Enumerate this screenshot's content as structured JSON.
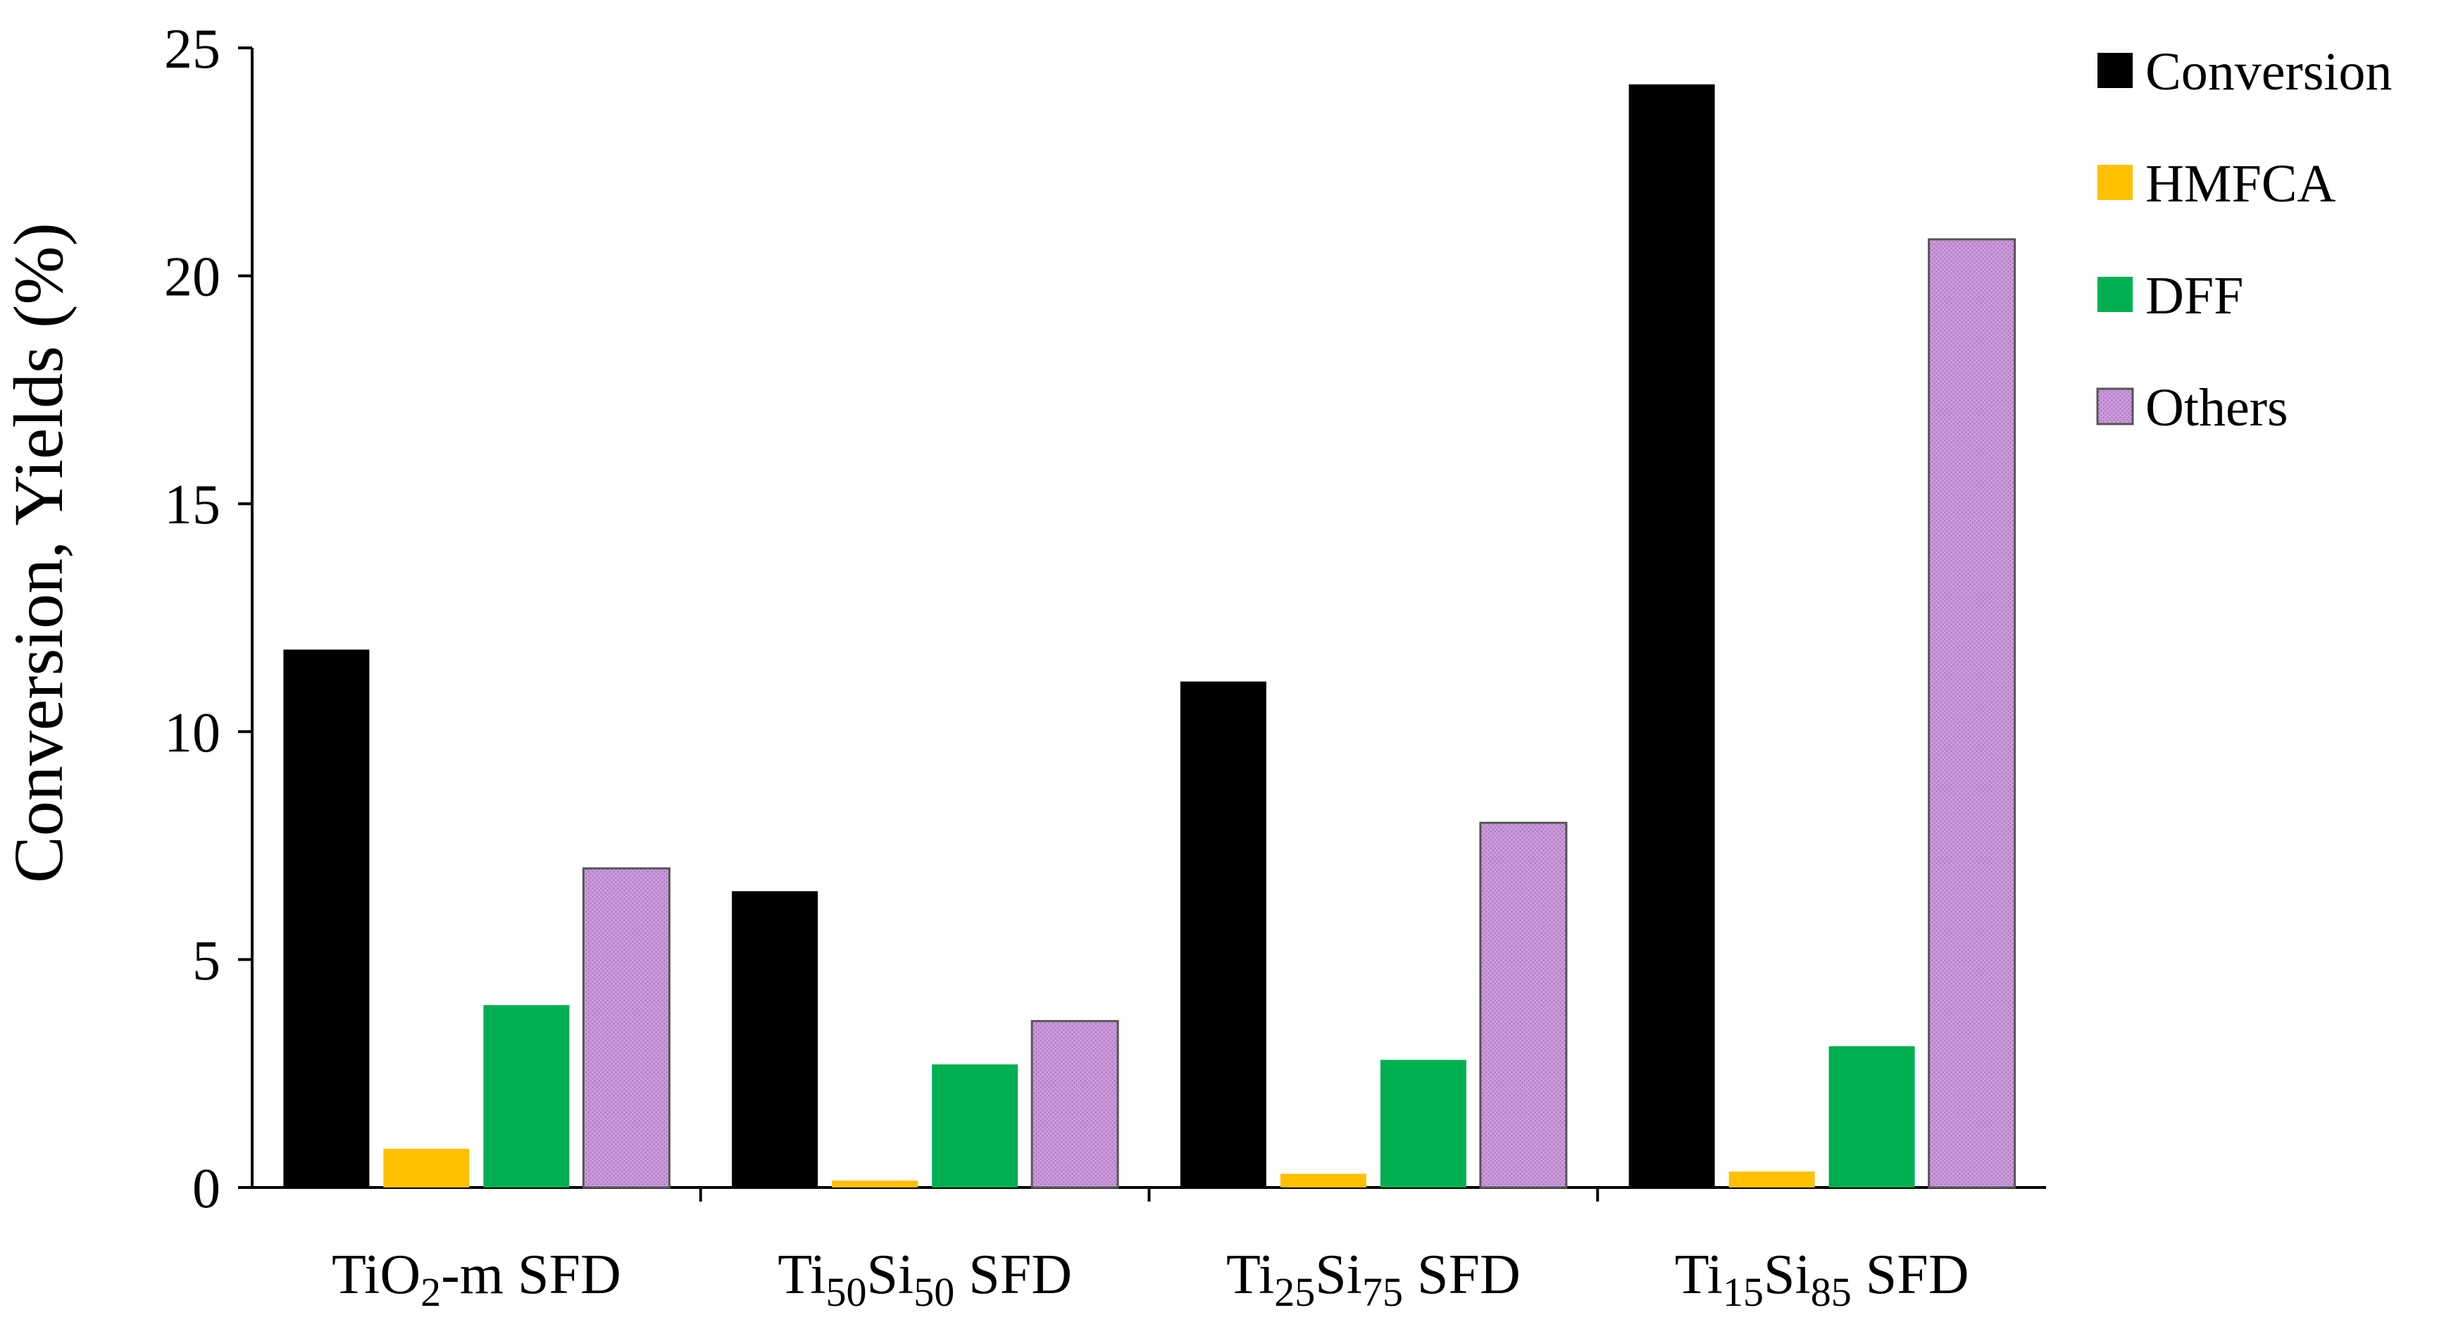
{
  "chart_data": {
    "type": "bar",
    "title": "",
    "xlabel": "",
    "ylabel": "Conversion, Yields (%)",
    "ylim": [
      0,
      25
    ],
    "yticks": [
      "0",
      "5",
      "10",
      "15",
      "20",
      "25"
    ],
    "grid": false,
    "legend_position": "top-right",
    "categories": [
      {
        "id": "tio2m",
        "parts": [
          {
            "t": "TiO",
            "s": "normal"
          },
          {
            "t": "2",
            "s": "sub"
          },
          {
            "t": "-m SFD",
            "s": "normal"
          }
        ]
      },
      {
        "id": "ti50si50",
        "parts": [
          {
            "t": "Ti",
            "s": "normal"
          },
          {
            "t": "50",
            "s": "sub"
          },
          {
            "t": "Si",
            "s": "normal"
          },
          {
            "t": "50",
            "s": "sub"
          },
          {
            "t": " SFD",
            "s": "normal"
          }
        ]
      },
      {
        "id": "ti25si75",
        "parts": [
          {
            "t": "Ti",
            "s": "normal"
          },
          {
            "t": "25",
            "s": "sub"
          },
          {
            "t": "Si",
            "s": "normal"
          },
          {
            "t": "75",
            "s": "sub"
          },
          {
            "t": " SFD",
            "s": "normal"
          }
        ]
      },
      {
        "id": "ti15si85",
        "parts": [
          {
            "t": "Ti",
            "s": "normal"
          },
          {
            "t": "15",
            "s": "sub"
          },
          {
            "t": "Si",
            "s": "normal"
          },
          {
            "t": "85",
            "s": "sub"
          },
          {
            "t": " SFD",
            "s": "normal"
          }
        ]
      }
    ],
    "series": [
      {
        "name": "Conversion",
        "color": "#000000",
        "pattern": "solid",
        "values": [
          11.8,
          6.5,
          11.1,
          24.2
        ]
      },
      {
        "name": "HMFCA",
        "color": "#FFC000",
        "pattern": "solid",
        "values": [
          0.85,
          0.15,
          0.3,
          0.35
        ]
      },
      {
        "name": "DFF",
        "color": "#00B050",
        "pattern": "solid",
        "values": [
          4.0,
          2.7,
          2.8,
          3.1
        ]
      },
      {
        "name": "Others",
        "color": "#CC99DD",
        "pattern": "dotted",
        "values": [
          7.0,
          3.65,
          8.0,
          20.8
        ]
      }
    ]
  }
}
